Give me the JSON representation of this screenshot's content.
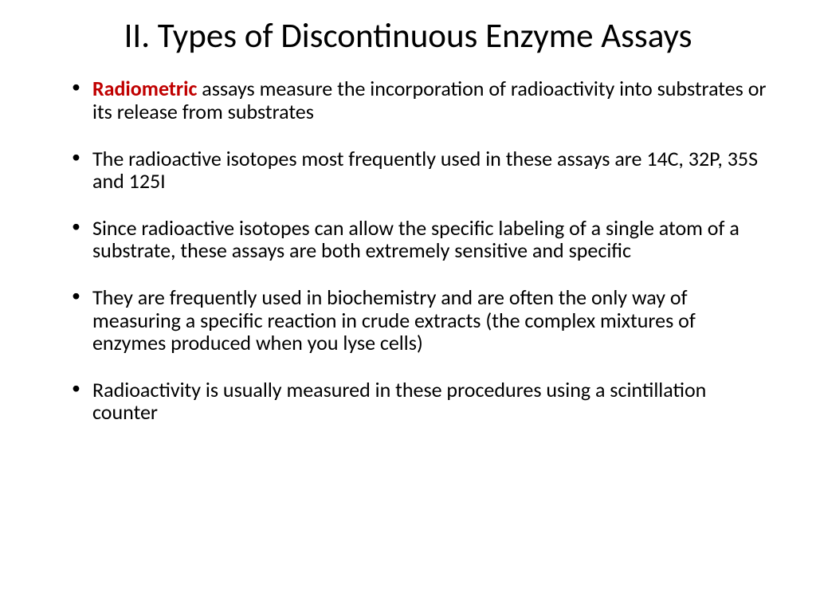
{
  "slide": {
    "title": "II.  Types of Discontinuous Enzyme Assays",
    "title_fontsize": 43,
    "title_color": "#000000",
    "title_align": "center",
    "background_color": "#ffffff",
    "highlight_color": "#c00000",
    "body_color": "#000000",
    "body_fontsize": 26,
    "bullets": [
      {
        "highlight_word": "Radiometric",
        "rest": " assays measure the incorporation of radioactivity into substrates or its release from substrates"
      },
      {
        "highlight_word": "",
        "rest": "The radioactive isotopes most frequently used in these assays are 14C, 32P, 35S and 125I"
      },
      {
        "highlight_word": "",
        "rest": "Since radioactive isotopes can allow the specific labeling of a single atom of a substrate, these assays are both extremely sensitive and specific"
      },
      {
        "highlight_word": "",
        "rest": "They are frequently used in biochemistry and are often the only way of measuring a specific reaction in crude extracts (the complex mixtures of enzymes produced when you lyse cells)"
      },
      {
        "highlight_word": "",
        "rest": "Radioactivity is usually measured in these procedures using a scintillation counter"
      }
    ]
  }
}
